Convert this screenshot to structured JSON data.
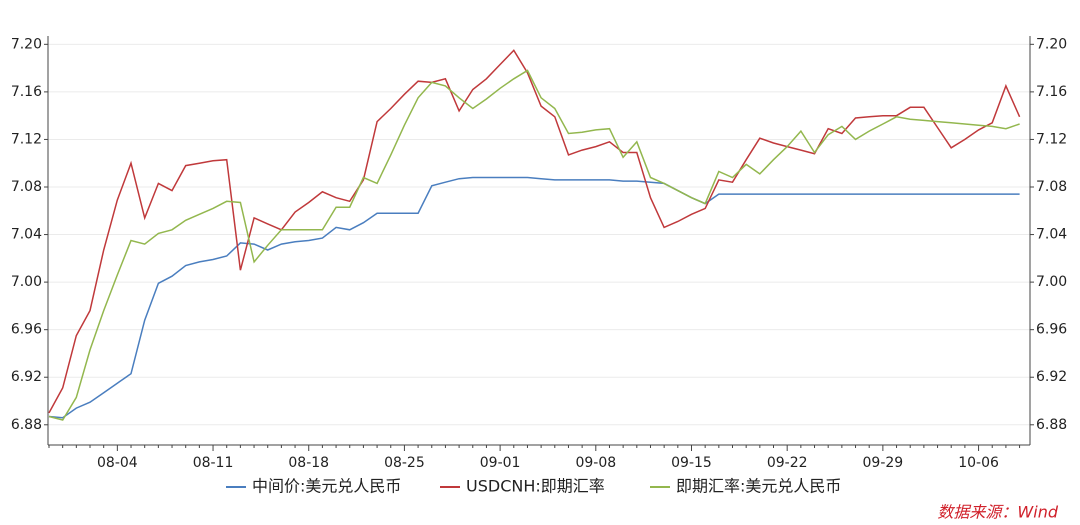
{
  "chart_data": {
    "type": "line",
    "categories": [
      null,
      null,
      null,
      null,
      null,
      "08-04",
      null,
      null,
      null,
      null,
      null,
      null,
      "08-11",
      null,
      null,
      null,
      null,
      null,
      null,
      "08-18",
      null,
      null,
      null,
      null,
      null,
      null,
      "08-25",
      null,
      null,
      null,
      null,
      null,
      null,
      "09-01",
      null,
      null,
      null,
      null,
      null,
      null,
      "09-08",
      null,
      null,
      null,
      null,
      null,
      null,
      "09-15",
      null,
      null,
      null,
      null,
      null,
      null,
      "09-22",
      null,
      null,
      null,
      null,
      null,
      null,
      "09-29",
      null,
      null,
      null,
      null,
      null,
      null,
      "10-06",
      null,
      null,
      null
    ],
    "series": [
      {
        "name": "中间价:美元兑人民币",
        "color": "#4a7ebf",
        "values": [
          6.887,
          6.886,
          6.894,
          6.899,
          6.907,
          6.915,
          6.923,
          6.968,
          6.999,
          7.005,
          7.014,
          7.017,
          7.019,
          7.022,
          7.033,
          7.032,
          7.027,
          7.032,
          7.034,
          7.035,
          7.037,
          7.046,
          7.044,
          7.05,
          7.058,
          7.058,
          7.058,
          7.058,
          7.081,
          7.084,
          7.087,
          7.088,
          7.088,
          7.088,
          7.088,
          7.088,
          7.087,
          7.086,
          7.086,
          7.086,
          7.086,
          7.086,
          7.085,
          7.085,
          7.084,
          7.083,
          7.077,
          7.071,
          7.066,
          7.074,
          7.074,
          7.074,
          7.074,
          7.074,
          7.074,
          7.074,
          7.074,
          7.074,
          7.074,
          7.074,
          7.074,
          7.074,
          7.074,
          7.074,
          7.074,
          7.074,
          7.074,
          7.074,
          7.074,
          7.074,
          7.074,
          7.074
        ]
      },
      {
        "name": "USDCNH:即期汇率",
        "color": "#c0393b",
        "values": [
          6.89,
          6.911,
          6.955,
          6.976,
          7.027,
          7.069,
          7.1,
          7.054,
          7.083,
          7.077,
          7.098,
          7.1,
          7.102,
          7.103,
          7.01,
          7.054,
          7.049,
          7.044,
          7.059,
          7.067,
          7.076,
          7.071,
          7.068,
          7.086,
          7.135,
          7.146,
          7.158,
          7.169,
          7.168,
          7.171,
          7.144,
          7.162,
          7.171,
          7.183,
          7.195,
          7.176,
          7.148,
          7.139,
          7.107,
          7.111,
          7.114,
          7.118,
          7.109,
          7.109,
          7.071,
          7.046,
          7.051,
          7.057,
          7.062,
          7.086,
          7.084,
          7.103,
          7.121,
          7.117,
          7.114,
          7.111,
          7.108,
          7.129,
          7.125,
          7.138,
          7.139,
          7.14,
          7.14,
          7.147,
          7.147,
          7.13,
          7.113,
          7.12,
          7.128,
          7.134,
          7.165,
          7.139
        ]
      },
      {
        "name": "即期汇率:美元兑人民币",
        "color": "#93b74e",
        "values": [
          6.887,
          6.884,
          6.903,
          6.943,
          6.976,
          7.006,
          7.035,
          7.032,
          7.041,
          7.044,
          7.052,
          7.057,
          7.062,
          7.068,
          7.067,
          7.017,
          7.031,
          7.044,
          7.044,
          7.044,
          7.044,
          7.063,
          7.063,
          7.088,
          7.083,
          7.107,
          7.132,
          7.155,
          7.168,
          7.165,
          7.155,
          7.146,
          7.154,
          7.163,
          7.171,
          7.178,
          7.155,
          7.146,
          7.125,
          7.126,
          7.128,
          7.129,
          7.105,
          7.118,
          7.088,
          7.083,
          7.077,
          7.071,
          7.066,
          7.093,
          7.088,
          7.099,
          7.091,
          7.103,
          7.114,
          7.127,
          7.109,
          7.124,
          7.131,
          7.12,
          7.127,
          7.133,
          7.139,
          7.137,
          7.136,
          7.135,
          7.134,
          7.133,
          7.132,
          7.131,
          7.129,
          7.133
        ]
      }
    ],
    "ylim": [
      6.863,
      7.207
    ],
    "yticks": [
      {
        "value": 6.88,
        "label": "6.88"
      },
      {
        "value": 6.92,
        "label": "6.92"
      },
      {
        "value": 6.96,
        "label": "6.96"
      },
      {
        "value": 7.0,
        "label": "7.00"
      },
      {
        "value": 7.04,
        "label": "7.04"
      },
      {
        "value": 7.08,
        "label": "7.08"
      },
      {
        "value": 7.12,
        "label": "7.12"
      },
      {
        "value": 7.16,
        "label": "7.16"
      },
      {
        "value": 7.2,
        "label": "7.20"
      }
    ],
    "y2lim": [
      6.863,
      7.207
    ],
    "y2ticks": [
      {
        "value": 6.88,
        "label": "6.88"
      },
      {
        "value": 6.92,
        "label": "6.92"
      },
      {
        "value": 6.96,
        "label": "6.96"
      },
      {
        "value": 7.0,
        "label": "7.00"
      },
      {
        "value": 7.04,
        "label": "7.04"
      },
      {
        "value": 7.08,
        "label": "7.08"
      },
      {
        "value": 7.12,
        "label": "7.12"
      },
      {
        "value": 7.16,
        "label": "7.16"
      },
      {
        "value": 7.2,
        "label": "7.20"
      }
    ],
    "grid": true,
    "legend": "bottom",
    "source": "数据来源：Wind"
  }
}
